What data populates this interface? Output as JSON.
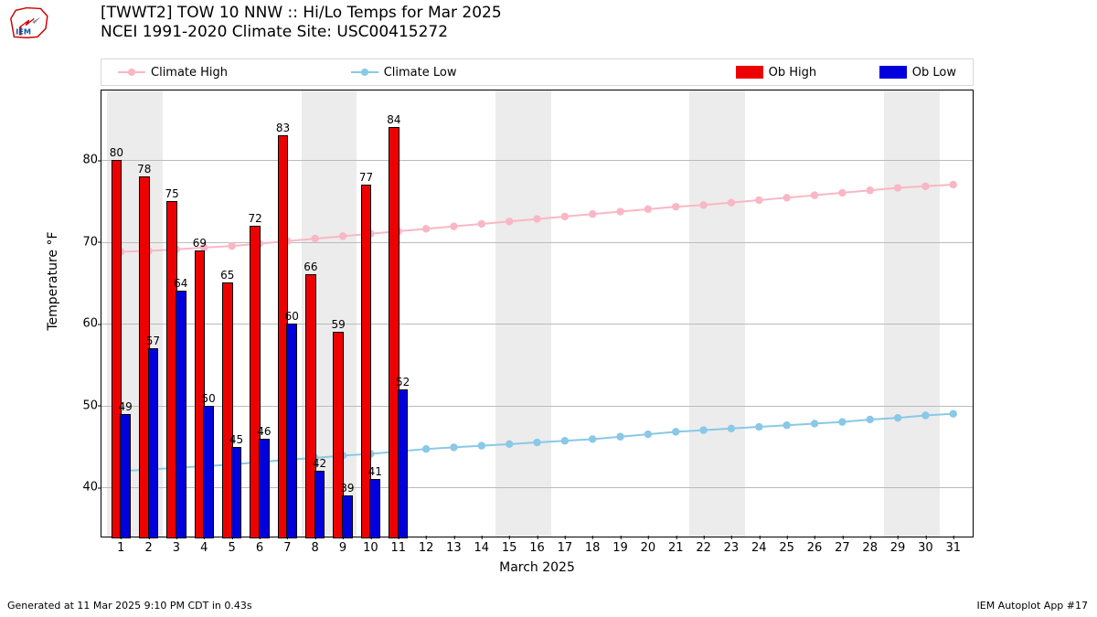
{
  "title_line1": "[TWWT2] TOW 10 NNW :: Hi/Lo Temps for Mar 2025",
  "title_line2": "NCEI 1991-2020 Climate Site: USC00415272",
  "ylabel": "Temperature °F",
  "xlabel": "March 2025",
  "footer_left": "Generated at 11 Mar 2025 9:10 PM CDT in 0.43s",
  "footer_right": "IEM Autoplot App #17",
  "legend": {
    "climate_high": "Climate High",
    "climate_low": "Climate Low",
    "ob_high": "Ob High",
    "ob_low": "Ob Low"
  },
  "colors": {
    "ob_high": "#ee0000",
    "ob_low": "#0000dd",
    "climate_high": "#f9b7c5",
    "climate_low": "#89c8e6",
    "grid": "#bbbbbb",
    "weekend": "#ececec",
    "background": "#ffffff",
    "text": "#000000"
  },
  "chart": {
    "type": "bar+line",
    "x_days": [
      1,
      2,
      3,
      4,
      5,
      6,
      7,
      8,
      9,
      10,
      11,
      12,
      13,
      14,
      15,
      16,
      17,
      18,
      19,
      20,
      21,
      22,
      23,
      24,
      25,
      26,
      27,
      28,
      29,
      30,
      31
    ],
    "x_range": [
      0.3,
      31.7
    ],
    "y_range": [
      34,
      88.5
    ],
    "y_ticks": [
      40,
      50,
      60,
      70,
      80
    ],
    "weekend_bands": [
      [
        0.5,
        2.5
      ],
      [
        7.5,
        9.5
      ],
      [
        14.5,
        16.5
      ],
      [
        21.5,
        23.5
      ],
      [
        28.5,
        30.5
      ]
    ],
    "ob_high": [
      80,
      78,
      75,
      69,
      65,
      72,
      83,
      66,
      59,
      77,
      84
    ],
    "ob_low": [
      49,
      57,
      64,
      50,
      45,
      46,
      60,
      42,
      39,
      41,
      52
    ],
    "climate_high": [
      68.8,
      68.9,
      69.1,
      69.3,
      69.5,
      69.8,
      70.1,
      70.4,
      70.7,
      71.0,
      71.3,
      71.6,
      71.9,
      72.2,
      72.5,
      72.8,
      73.1,
      73.4,
      73.7,
      74.0,
      74.3,
      74.5,
      74.8,
      75.1,
      75.4,
      75.7,
      76.0,
      76.3,
      76.6,
      76.8,
      77.0
    ],
    "climate_low": [
      42.0,
      42.2,
      42.4,
      42.6,
      42.8,
      43.1,
      43.4,
      43.6,
      43.9,
      44.1,
      44.4,
      44.7,
      44.9,
      45.1,
      45.3,
      45.5,
      45.7,
      45.9,
      46.2,
      46.5,
      46.8,
      47.0,
      47.2,
      47.4,
      47.6,
      47.8,
      48.0,
      48.3,
      48.5,
      48.8,
      49.0
    ],
    "bar_width_pair": 0.64,
    "marker_radius": 4.2,
    "line_width": 2,
    "font_size_title": 17,
    "font_size_axis": 13,
    "font_size_barlabel": 12
  }
}
